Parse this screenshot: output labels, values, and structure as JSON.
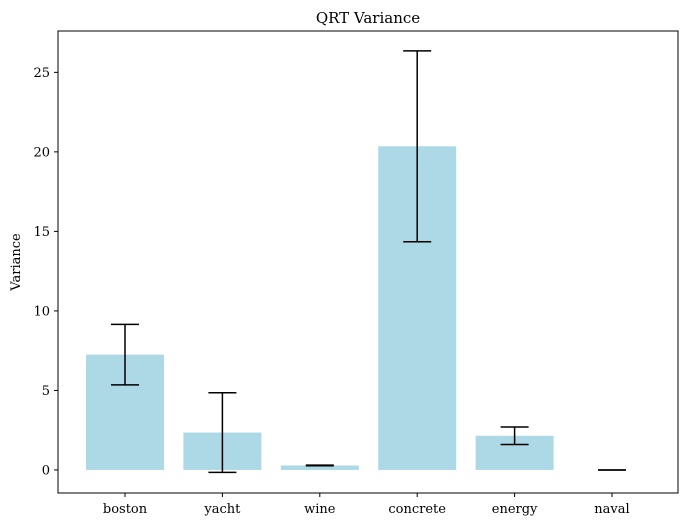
{
  "chart_data": {
    "type": "bar",
    "title": "QRT Variance",
    "xlabel": "",
    "ylabel": "Variance",
    "categories": [
      "boston",
      "yacht",
      "wine",
      "concrete",
      "energy",
      "naval"
    ],
    "values": [
      7.25,
      2.35,
      0.28,
      20.35,
      2.15,
      0.0
    ],
    "errors": [
      1.9,
      2.5,
      0.02,
      6.0,
      0.55,
      0.0
    ],
    "yticks": [
      "0",
      "5",
      "10",
      "15",
      "20",
      "25"
    ],
    "ylim": [
      -1.45,
      27.6
    ],
    "bar_color": "#add8e6",
    "error_color": "#000000",
    "grid": false
  }
}
